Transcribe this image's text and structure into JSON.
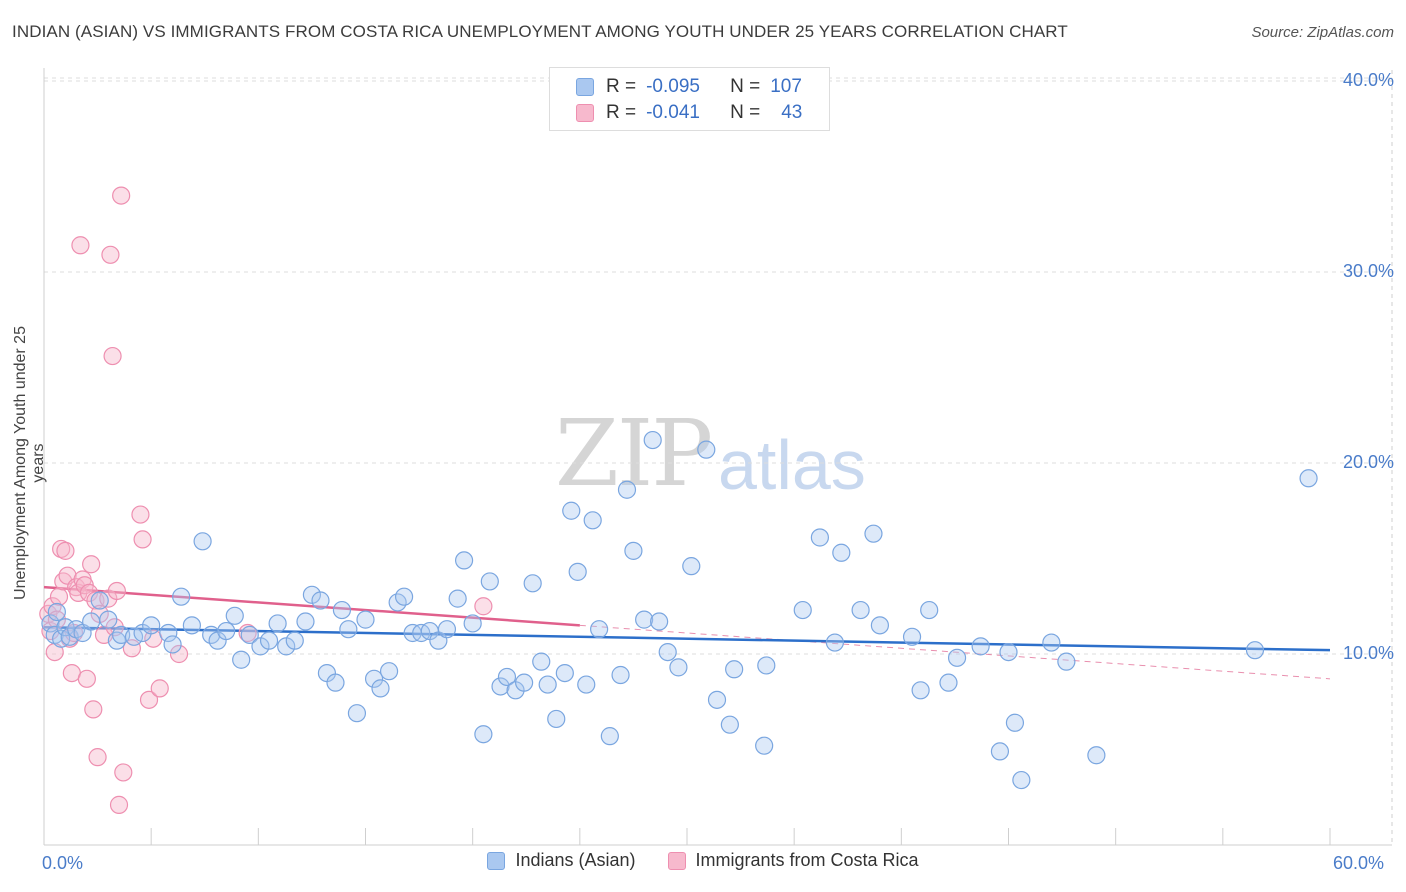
{
  "title": "INDIAN (ASIAN) VS IMMIGRANTS FROM COSTA RICA UNEMPLOYMENT AMONG YOUTH UNDER 25 YEARS CORRELATION CHART",
  "source": "Source: ZipAtlas.com",
  "watermark": {
    "zip": "ZIP",
    "atlas": "atlas"
  },
  "legend": {
    "rows": [
      {
        "r_label": "R =",
        "r_value": "-0.095",
        "n_label": "N =",
        "n_value": "107"
      },
      {
        "r_label": "R =",
        "r_value": "-0.041",
        "n_label": "N =",
        "n_value": "43"
      }
    ]
  },
  "bottom_legend": [
    "Indians (Asian)",
    "Immigrants from Costa Rica"
  ],
  "colors": {
    "blue_fill": "#aac8f0",
    "blue_stroke": "#7aa6e0",
    "blue_line": "#2c6fca",
    "pink_fill": "#f7b9cd",
    "pink_stroke": "#ee8fb0",
    "pink_line": "#e0608c",
    "grid": "#dddddd",
    "tick_text": "#4a7cc9"
  },
  "chart_data": {
    "type": "scatter",
    "title": "INDIAN (ASIAN) VS IMMIGRANTS FROM COSTA RICA UNEMPLOYMENT AMONG YOUTH UNDER 25 YEARS CORRELATION CHART",
    "xlabel": "",
    "ylabel": "Unemployment Among Youth under 25 years",
    "xlim": [
      0,
      60
    ],
    "ylim": [
      0,
      41
    ],
    "x_tick_labels": [
      "0.0%",
      "60.0%"
    ],
    "y_ticks": [
      10,
      20,
      30,
      40
    ],
    "y_tick_labels": [
      "10.0%",
      "20.0%",
      "30.0%",
      "40.0%"
    ],
    "grid": true,
    "legend_position": "top-center",
    "series": [
      {
        "name": "Indians (Asian)",
        "r": -0.095,
        "n": 107,
        "trend": {
          "x": [
            0,
            60
          ],
          "y": [
            11.4,
            10.2
          ]
        },
        "points": [
          [
            0.3,
            11.6
          ],
          [
            0.5,
            11.0
          ],
          [
            0.6,
            12.2
          ],
          [
            0.8,
            10.8
          ],
          [
            1.0,
            11.4
          ],
          [
            1.2,
            10.9
          ],
          [
            1.5,
            11.3
          ],
          [
            1.8,
            11.1
          ],
          [
            2.2,
            11.7
          ],
          [
            2.6,
            12.8
          ],
          [
            3.0,
            11.8
          ],
          [
            3.4,
            10.7
          ],
          [
            3.6,
            11.0
          ],
          [
            4.2,
            10.9
          ],
          [
            4.6,
            11.1
          ],
          [
            5.0,
            11.5
          ],
          [
            5.8,
            11.1
          ],
          [
            6.0,
            10.5
          ],
          [
            6.4,
            13.0
          ],
          [
            6.9,
            11.5
          ],
          [
            7.4,
            15.9
          ],
          [
            7.8,
            11.0
          ],
          [
            8.1,
            10.7
          ],
          [
            8.5,
            11.2
          ],
          [
            8.9,
            12.0
          ],
          [
            9.2,
            9.7
          ],
          [
            9.6,
            11.0
          ],
          [
            10.1,
            10.4
          ],
          [
            10.5,
            10.7
          ],
          [
            10.9,
            11.6
          ],
          [
            11.3,
            10.4
          ],
          [
            11.7,
            10.7
          ],
          [
            12.2,
            11.7
          ],
          [
            12.5,
            13.1
          ],
          [
            12.9,
            12.8
          ],
          [
            13.2,
            9.0
          ],
          [
            13.6,
            8.5
          ],
          [
            13.9,
            12.3
          ],
          [
            14.2,
            11.3
          ],
          [
            14.6,
            6.9
          ],
          [
            15.0,
            11.8
          ],
          [
            15.4,
            8.7
          ],
          [
            15.7,
            8.2
          ],
          [
            16.1,
            9.1
          ],
          [
            16.5,
            12.7
          ],
          [
            16.8,
            13.0
          ],
          [
            17.2,
            11.1
          ],
          [
            17.6,
            11.1
          ],
          [
            18.0,
            11.2
          ],
          [
            18.4,
            10.7
          ],
          [
            18.8,
            11.3
          ],
          [
            19.3,
            12.9
          ],
          [
            19.6,
            14.9
          ],
          [
            20.0,
            11.6
          ],
          [
            20.5,
            5.8
          ],
          [
            20.8,
            13.8
          ],
          [
            21.3,
            8.3
          ],
          [
            21.6,
            8.8
          ],
          [
            22.0,
            8.1
          ],
          [
            22.4,
            8.5
          ],
          [
            22.8,
            13.7
          ],
          [
            23.2,
            9.6
          ],
          [
            23.5,
            8.4
          ],
          [
            23.9,
            6.6
          ],
          [
            24.3,
            9.0
          ],
          [
            24.6,
            17.5
          ],
          [
            24.9,
            14.3
          ],
          [
            25.3,
            8.4
          ],
          [
            25.6,
            17.0
          ],
          [
            25.9,
            11.3
          ],
          [
            26.4,
            5.7
          ],
          [
            26.9,
            8.9
          ],
          [
            27.2,
            18.6
          ],
          [
            27.5,
            15.4
          ],
          [
            28.0,
            11.8
          ],
          [
            28.4,
            21.2
          ],
          [
            28.7,
            11.7
          ],
          [
            29.1,
            10.1
          ],
          [
            29.6,
            9.3
          ],
          [
            30.2,
            14.6
          ],
          [
            30.9,
            20.7
          ],
          [
            31.4,
            7.6
          ],
          [
            32.0,
            6.3
          ],
          [
            32.2,
            9.2
          ],
          [
            33.6,
            5.2
          ],
          [
            33.7,
            9.4
          ],
          [
            35.4,
            12.3
          ],
          [
            36.2,
            16.1
          ],
          [
            36.9,
            10.6
          ],
          [
            37.2,
            15.3
          ],
          [
            38.1,
            12.3
          ],
          [
            38.7,
            16.3
          ],
          [
            39.0,
            11.5
          ],
          [
            40.5,
            10.9
          ],
          [
            40.9,
            8.1
          ],
          [
            41.3,
            12.3
          ],
          [
            42.2,
            8.5
          ],
          [
            42.6,
            9.8
          ],
          [
            43.7,
            10.4
          ],
          [
            44.6,
            4.9
          ],
          [
            45.0,
            10.1
          ],
          [
            45.3,
            6.4
          ],
          [
            45.6,
            3.4
          ],
          [
            47.0,
            10.6
          ],
          [
            47.7,
            9.6
          ],
          [
            49.1,
            4.7
          ],
          [
            56.5,
            10.2
          ],
          [
            59.0,
            19.2
          ]
        ]
      },
      {
        "name": "Immigrants from Costa Rica",
        "r": -0.041,
        "n": 43,
        "trend": {
          "x": [
            0,
            25
          ],
          "y": [
            13.5,
            11.5
          ]
        },
        "trend_dashed": {
          "x": [
            25,
            60
          ],
          "y": [
            11.5,
            8.7
          ]
        },
        "points": [
          [
            0.2,
            12.1
          ],
          [
            0.3,
            11.2
          ],
          [
            0.4,
            12.5
          ],
          [
            0.5,
            10.1
          ],
          [
            0.6,
            11.8
          ],
          [
            0.7,
            13.0
          ],
          [
            0.8,
            15.5
          ],
          [
            0.9,
            13.8
          ],
          [
            1.0,
            15.4
          ],
          [
            1.1,
            14.1
          ],
          [
            1.2,
            10.8
          ],
          [
            1.3,
            9.0
          ],
          [
            1.4,
            11.1
          ],
          [
            1.5,
            13.5
          ],
          [
            1.6,
            13.2
          ],
          [
            1.7,
            31.4
          ],
          [
            1.8,
            13.9
          ],
          [
            1.9,
            13.6
          ],
          [
            2.0,
            8.7
          ],
          [
            2.1,
            13.2
          ],
          [
            2.2,
            14.7
          ],
          [
            2.3,
            7.1
          ],
          [
            2.4,
            12.8
          ],
          [
            2.5,
            4.6
          ],
          [
            2.6,
            12.1
          ],
          [
            2.8,
            11.0
          ],
          [
            3.0,
            12.9
          ],
          [
            3.1,
            30.9
          ],
          [
            3.2,
            25.6
          ],
          [
            3.3,
            11.4
          ],
          [
            3.4,
            13.3
          ],
          [
            3.5,
            2.1
          ],
          [
            3.6,
            34.0
          ],
          [
            3.7,
            3.8
          ],
          [
            4.1,
            10.3
          ],
          [
            4.5,
            17.3
          ],
          [
            4.6,
            16.0
          ],
          [
            4.9,
            7.6
          ],
          [
            5.1,
            10.8
          ],
          [
            5.4,
            8.2
          ],
          [
            6.3,
            10.0
          ],
          [
            9.5,
            11.1
          ],
          [
            20.5,
            12.5
          ]
        ]
      }
    ]
  }
}
